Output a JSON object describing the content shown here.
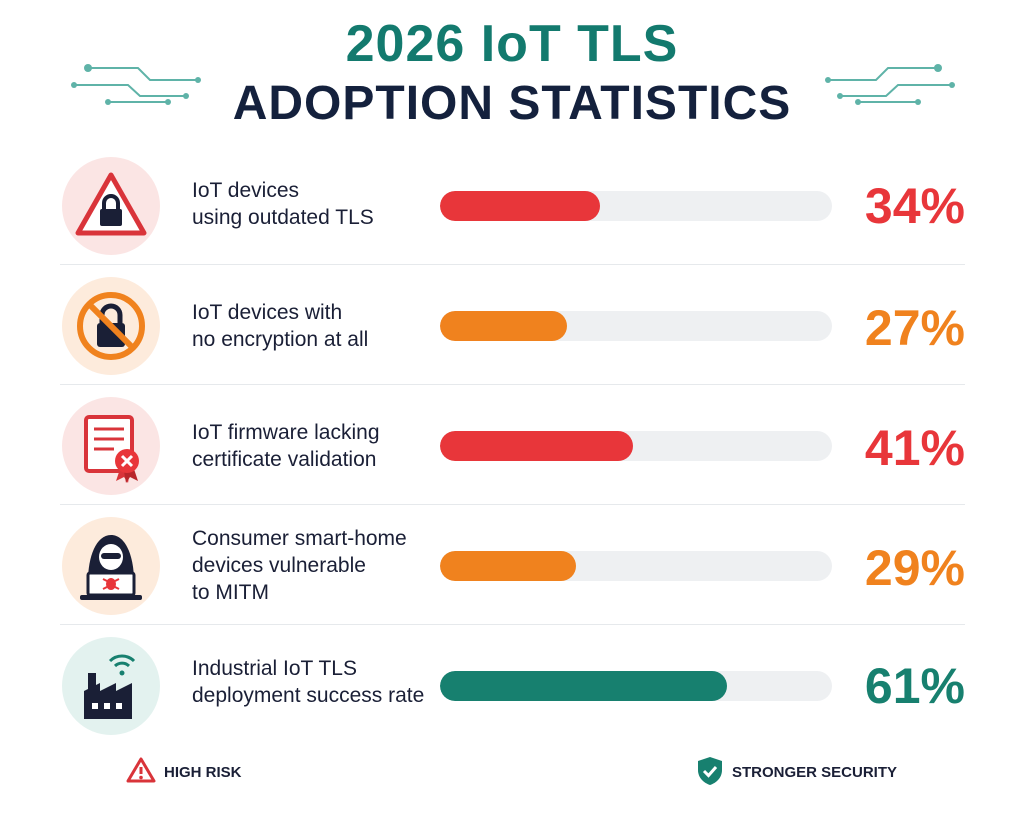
{
  "title_line1": "2026 IoT TLS",
  "title_line2": "ADOPTION STATISTICS",
  "colors": {
    "title1": "#137a6e",
    "title2": "#14213d",
    "red": "#e8363a",
    "orange": "#f0821e",
    "teal": "#17806f"
  },
  "chart_data": {
    "type": "bar",
    "orientation": "horizontal",
    "xlim": [
      0,
      100
    ],
    "categories": [
      "IoT devices using outdated TLS",
      "IoT devices with no encryption at all",
      "IoT firmware lacking certificate validation",
      "Consumer smart-home devices vulnerable to MITM",
      "Industrial IoT TLS deployment success rate"
    ],
    "values": [
      34,
      27,
      41,
      29,
      61
    ],
    "rows": [
      {
        "label_lines": [
          "IoT devices",
          "using outdated TLS"
        ],
        "value": 34,
        "value_label": "34%",
        "color": "#e8363a",
        "icon": "warning-lock-icon"
      },
      {
        "label_lines": [
          "IoT devices with",
          "no encryption at all"
        ],
        "value": 27,
        "value_label": "27%",
        "color": "#f0821e",
        "icon": "no-lock-icon"
      },
      {
        "label_lines": [
          "IoT firmware lacking",
          "certificate validation"
        ],
        "value": 41,
        "value_label": "41%",
        "color": "#e8363a",
        "icon": "invalid-certificate-icon"
      },
      {
        "label_lines": [
          "Consumer smart-home",
          "devices vulnerable",
          "to MITM"
        ],
        "value": 29,
        "value_label": "29%",
        "color": "#f0821e",
        "icon": "hacker-laptop-icon"
      },
      {
        "label_lines": [
          "Industrial IoT TLS",
          "deployment success rate"
        ],
        "value": 61,
        "value_label": "61%",
        "color": "#17806f",
        "icon": "factory-wifi-icon"
      }
    ]
  },
  "legend": {
    "left_label": "HIGH RISK",
    "left_icon": "warning-icon",
    "right_label": "STRONGER SECURITY",
    "right_icon": "shield-check-icon"
  }
}
